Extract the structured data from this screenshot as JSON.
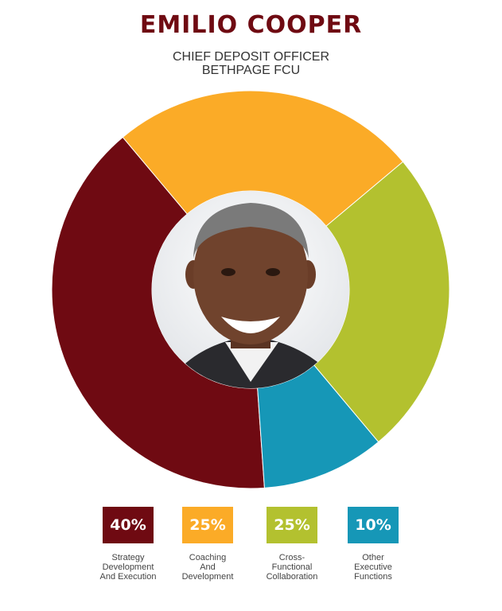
{
  "header": {
    "name": "EMILIO COOPER",
    "role": "CHIEF DEPOSIT OFFICER",
    "org": "BETHPAGE FCU"
  },
  "photo": {
    "subject": "portrait-photo"
  },
  "chart_data": {
    "type": "pie",
    "variant": "donut",
    "title": "",
    "categories": [
      "Strategy\nDevelopment\nAnd Execution",
      "Coaching\nAnd\nDevelopment",
      "Cross-\nFunctional\nCollaboration",
      "Other\nExecutive\nFunctions"
    ],
    "values": [
      40,
      25,
      25,
      10
    ],
    "value_labels": [
      "40%",
      "25%",
      "25%",
      "10%"
    ],
    "colors": [
      "#6f0a12",
      "#fbab27",
      "#b3c12f",
      "#1697b7"
    ],
    "legend": "bottom"
  }
}
